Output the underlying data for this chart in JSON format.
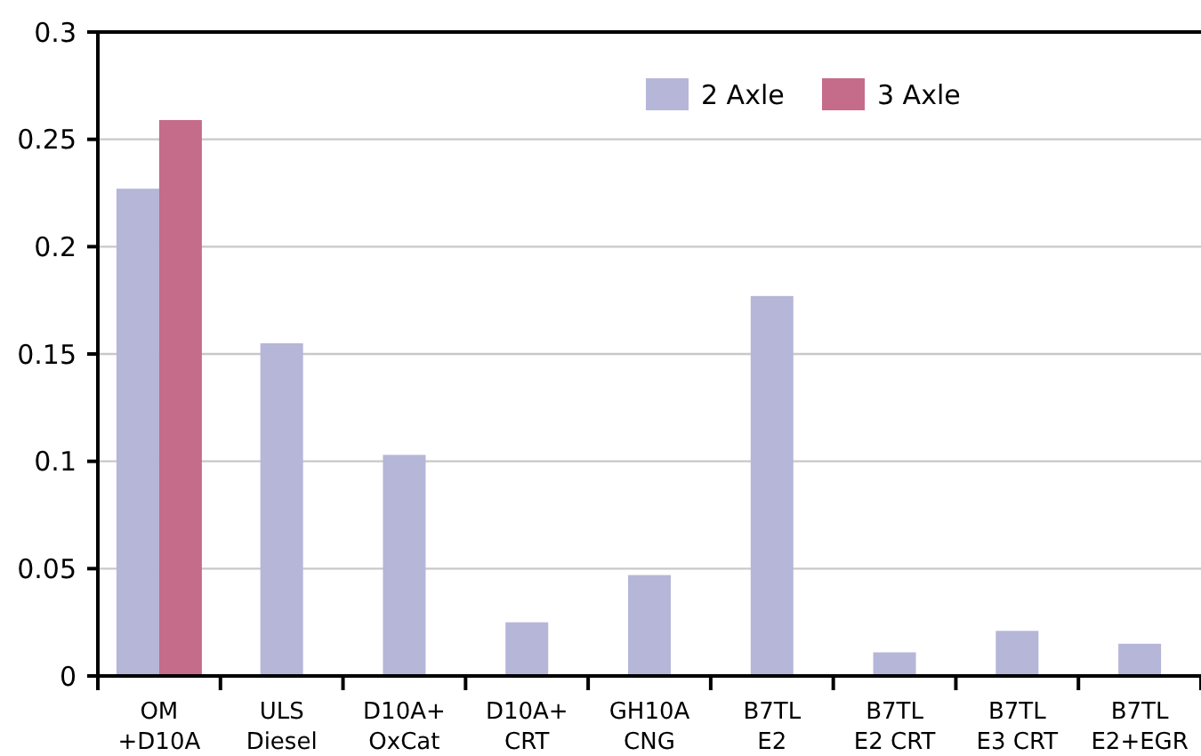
{
  "chart_data": {
    "type": "bar",
    "categories": [
      "OM +D10A",
      "ULS Diesel",
      "D10A+ OxCat",
      "D10A+ CRT",
      "GH10A CNG",
      "B7TL E2",
      "B7TL E2 CRT",
      "B7TL E3 CRT",
      "B7TL E2+EGR"
    ],
    "series": [
      {
        "name": "2 Axle",
        "color": "#b5b6d8",
        "values": [
          0.227,
          0.155,
          0.103,
          0.025,
          0.047,
          0.177,
          0.011,
          0.021,
          0.015
        ]
      },
      {
        "name": "3 Axle",
        "color": "#c46c8a",
        "values": [
          0.259,
          null,
          null,
          null,
          null,
          null,
          null,
          null,
          null
        ]
      }
    ],
    "ylim": [
      0,
      0.3
    ],
    "yticks": [
      0,
      0.05,
      0.1,
      0.15,
      0.2,
      0.25,
      0.3
    ],
    "grid": "y",
    "legend": "top right"
  }
}
